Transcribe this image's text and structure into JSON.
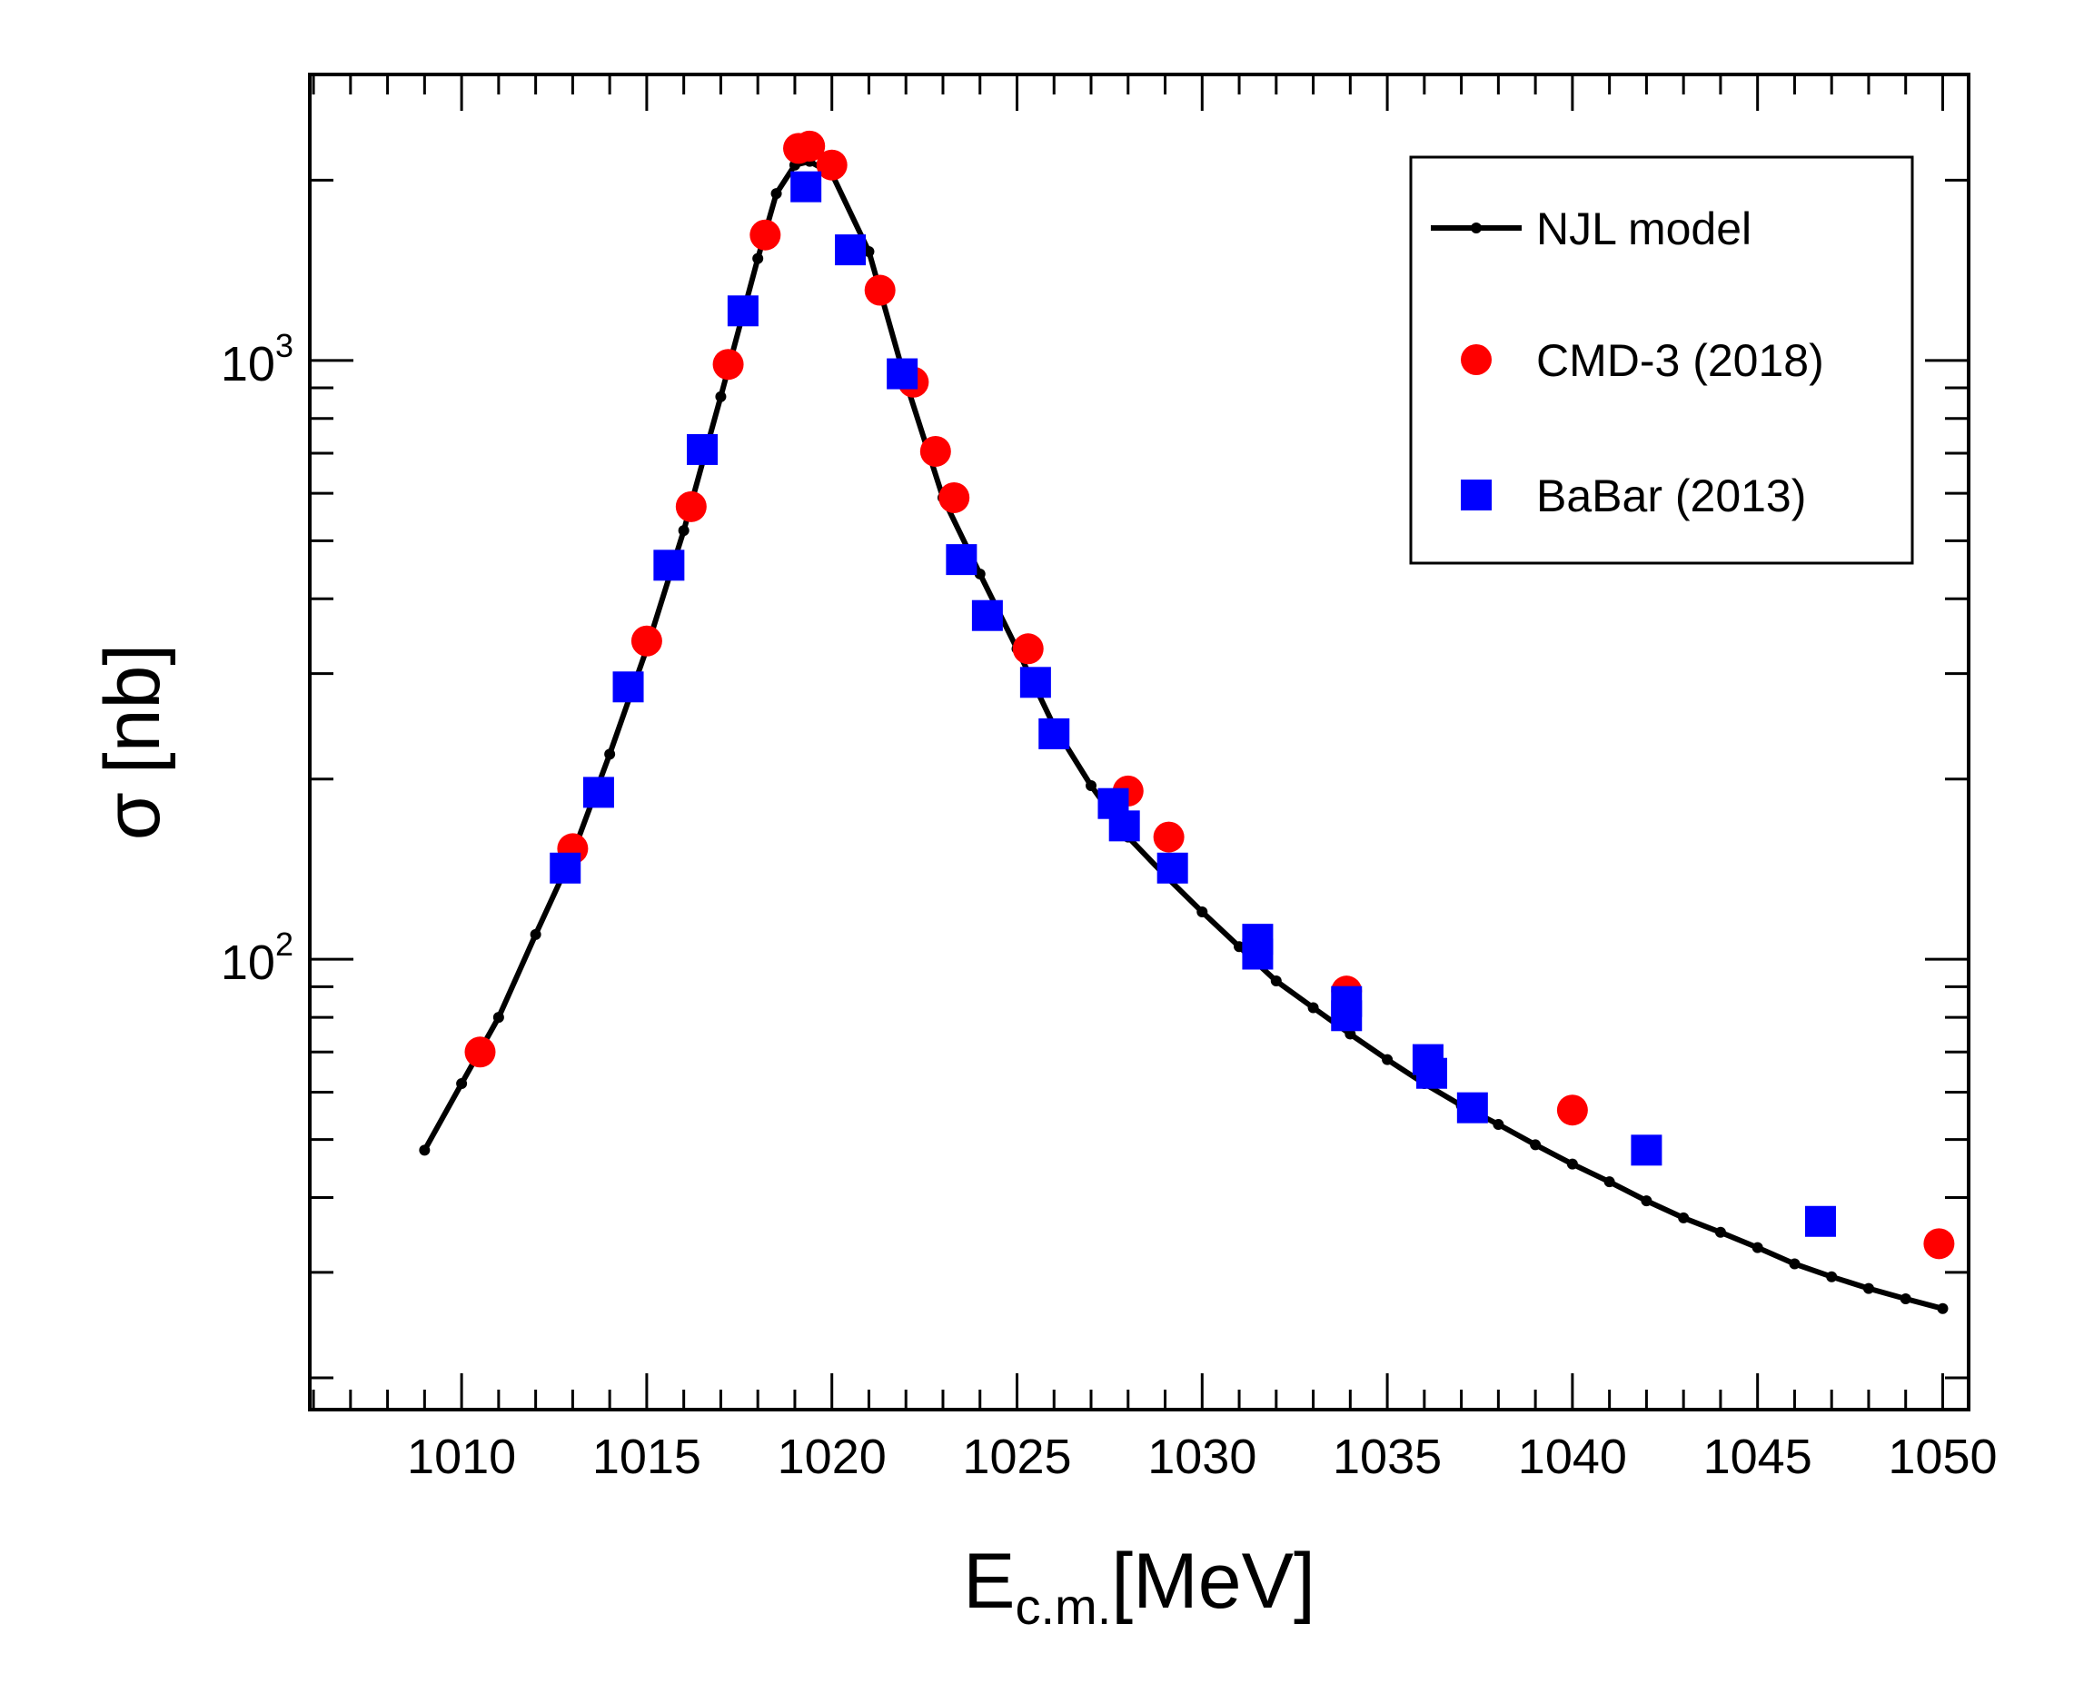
{
  "chart_data": {
    "type": "scatter",
    "title": "",
    "xlabel": {
      "main": "E",
      "subscript": "c.m.",
      "unit": "[MeV]"
    },
    "ylabel": {
      "symbol": "σ",
      "unit": "[nb]"
    },
    "xlim": [
      1005.9,
      1050.7
    ],
    "ylim": [
      17.7,
      3003
    ],
    "yscale": "log",
    "grid": false,
    "legend_position": "top-right",
    "x_tick_labels": [
      "1010",
      "1015",
      "1020",
      "1025",
      "1030",
      "1035",
      "1040",
      "1045",
      "1050"
    ],
    "y_tick_labels": [
      {
        "base": "10",
        "exp": "2",
        "value": 100
      },
      {
        "base": "10",
        "exp": "3",
        "value": 1000
      }
    ],
    "series": [
      {
        "name": "NJL model",
        "kind": "line",
        "color": "#000000",
        "points": [
          [
            1009.0,
            48
          ],
          [
            1010.0,
            62
          ],
          [
            1011.0,
            80
          ],
          [
            1012.0,
            110
          ],
          [
            1013.0,
            150
          ],
          [
            1014.0,
            220
          ],
          [
            1015.0,
            330
          ],
          [
            1016.0,
            520
          ],
          [
            1017.0,
            870
          ],
          [
            1018.0,
            1480
          ],
          [
            1018.5,
            1900
          ],
          [
            1019.0,
            2120
          ],
          [
            1019.4,
            2150
          ],
          [
            1020.0,
            2050
          ],
          [
            1021.0,
            1520
          ],
          [
            1022.0,
            920
          ],
          [
            1023.0,
            590
          ],
          [
            1024.0,
            440
          ],
          [
            1025.0,
            330
          ],
          [
            1026.0,
            245
          ],
          [
            1027.0,
            195
          ],
          [
            1028.0,
            160
          ],
          [
            1029.0,
            138
          ],
          [
            1030.0,
            120
          ],
          [
            1031.0,
            105
          ],
          [
            1032.0,
            92
          ],
          [
            1033.0,
            83
          ],
          [
            1034.0,
            75
          ],
          [
            1035.0,
            68
          ],
          [
            1036.0,
            62
          ],
          [
            1037.0,
            57
          ],
          [
            1038.0,
            53
          ],
          [
            1039.0,
            49
          ],
          [
            1040.0,
            45.5
          ],
          [
            1041.0,
            42.5
          ],
          [
            1042.0,
            39.5
          ],
          [
            1043.0,
            37
          ],
          [
            1044.0,
            35
          ],
          [
            1045.0,
            33
          ],
          [
            1046.0,
            31
          ],
          [
            1047.0,
            29.5
          ],
          [
            1048.0,
            28.2
          ],
          [
            1049.0,
            27.1
          ],
          [
            1050.0,
            26.1
          ]
        ]
      },
      {
        "name": "CMD-3 (2018)",
        "kind": "circle",
        "color": "#ff0000",
        "points": [
          [
            1010.5,
            70
          ],
          [
            1013.0,
            153
          ],
          [
            1015.0,
            340
          ],
          [
            1016.2,
            570
          ],
          [
            1017.2,
            985
          ],
          [
            1018.2,
            1620
          ],
          [
            1019.1,
            2260
          ],
          [
            1019.4,
            2280
          ],
          [
            1020.0,
            2120
          ],
          [
            1021.3,
            1310
          ],
          [
            1022.2,
            920
          ],
          [
            1022.8,
            705
          ],
          [
            1023.3,
            590
          ],
          [
            1025.3,
            330
          ],
          [
            1028.0,
            191
          ],
          [
            1029.1,
            160
          ],
          [
            1033.9,
            88.5
          ],
          [
            1040.0,
            56
          ],
          [
            1049.9,
            33.5
          ]
        ]
      },
      {
        "name": "BaBar (2013)",
        "kind": "square",
        "color": "#0000ff",
        "points": [
          [
            1012.8,
            142
          ],
          [
            1013.7,
            190
          ],
          [
            1014.5,
            285
          ],
          [
            1015.6,
            455
          ],
          [
            1016.5,
            710
          ],
          [
            1017.6,
            1210
          ],
          [
            1019.3,
            1950
          ],
          [
            1020.5,
            1530
          ],
          [
            1021.9,
            950
          ],
          [
            1023.5,
            465
          ],
          [
            1024.2,
            375
          ],
          [
            1025.5,
            290
          ],
          [
            1026.0,
            238
          ],
          [
            1027.6,
            182
          ],
          [
            1027.9,
            167
          ],
          [
            1029.2,
            142
          ],
          [
            1031.5,
            108
          ],
          [
            1031.5,
            102
          ],
          [
            1033.9,
            85
          ],
          [
            1033.9,
            80.5
          ],
          [
            1036.1,
            68
          ],
          [
            1036.2,
            64.5
          ],
          [
            1037.3,
            56.5
          ],
          [
            1042.0,
            48
          ],
          [
            1046.7,
            36.5
          ]
        ]
      }
    ]
  },
  "legend": {
    "items": [
      {
        "label": "NJL model",
        "marker": "line",
        "color": "#000000"
      },
      {
        "label": "CMD-3 (2018)",
        "marker": "circle",
        "color": "#ff0000"
      },
      {
        "label": "BaBar (2013)",
        "marker": "square",
        "color": "#0000ff"
      }
    ]
  }
}
